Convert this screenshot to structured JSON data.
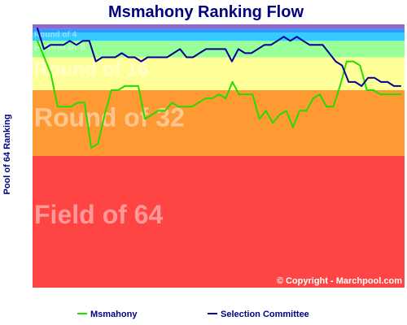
{
  "chart_data": {
    "type": "line",
    "title": "Msmahony Ranking Flow",
    "ylabel": "Pool of 64 Ranking",
    "xlabel": "",
    "copyright": "© Copyright - Marchpool.com",
    "bands": [
      {
        "label": "Field of 64",
        "color": "#ff4444",
        "from": 32,
        "to": 64
      },
      {
        "label": "Round of 32",
        "color": "#ff9933",
        "from": 16,
        "to": 32
      },
      {
        "label": "Round of 16",
        "color": "#ffff99",
        "from": 8,
        "to": 16
      },
      {
        "label": "Round of 8",
        "color": "#99ff99",
        "from": 4,
        "to": 8
      },
      {
        "label": "Round of 4",
        "color": "#33ccff",
        "from": 2,
        "to": 4
      },
      {
        "label": "",
        "color": "#3399ff",
        "from": 1,
        "to": 2
      },
      {
        "label": "",
        "color": "#9966cc",
        "from": 0,
        "to": 1
      }
    ],
    "ylim": [
      0,
      64
    ],
    "series": [
      {
        "name": "Msmahony",
        "color": "#22dd00",
        "values": [
          4,
          8,
          12,
          20,
          20,
          20,
          19,
          19,
          30,
          29,
          22,
          16,
          16,
          15,
          15,
          15,
          23,
          22,
          21,
          21,
          19,
          20,
          20,
          20,
          19,
          18,
          18,
          17,
          18,
          14,
          17,
          17,
          17,
          23,
          21,
          24,
          22,
          21,
          25,
          21,
          21,
          18,
          17,
          20,
          20,
          15,
          9,
          9,
          10,
          16,
          16,
          17,
          17,
          17,
          17
        ]
      },
      {
        "name": "Selection Committee",
        "color": "#000099",
        "values": [
          1,
          6,
          5,
          5,
          5,
          4,
          5,
          4,
          4,
          9,
          8,
          8,
          8,
          7,
          8,
          8,
          9,
          8,
          8,
          8,
          8,
          7,
          6,
          8,
          8,
          7,
          6,
          6,
          6,
          6,
          9,
          6,
          7,
          7,
          6,
          5,
          5,
          4,
          3,
          4,
          3,
          4,
          5,
          5,
          5,
          7,
          9,
          10,
          14,
          14,
          15,
          13,
          13,
          14,
          14,
          15,
          15
        ]
      }
    ]
  }
}
